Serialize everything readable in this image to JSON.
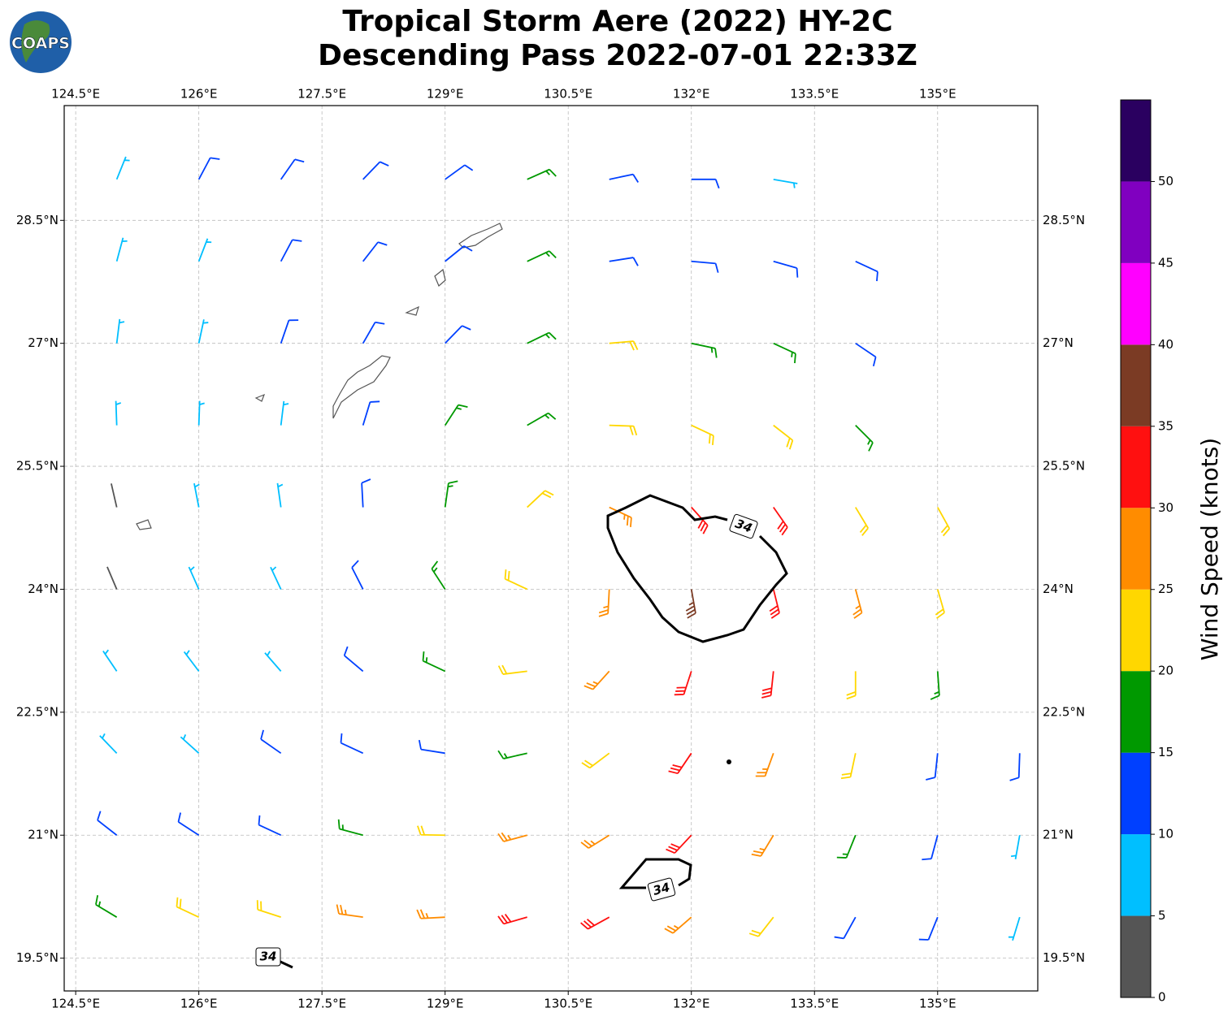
{
  "chart_data": {
    "type": "barbs",
    "logo": "COAPS",
    "title": "Tropical Storm Aere (2022) HY-2C",
    "subtitle": "Descending Pass 2022-07-01 22:33Z",
    "xlim": [
      124.36,
      136.22
    ],
    "ylim": [
      19.1,
      29.9
    ],
    "xticks": [
      {
        "value": 124.5,
        "label": "124.5°E"
      },
      {
        "value": 126,
        "label": "126°E"
      },
      {
        "value": 127.5,
        "label": "127.5°E"
      },
      {
        "value": 129,
        "label": "129°E"
      },
      {
        "value": 130.5,
        "label": "130.5°E"
      },
      {
        "value": 132,
        "label": "132°E"
      },
      {
        "value": 133.5,
        "label": "133.5°E"
      },
      {
        "value": 135,
        "label": "135°E"
      }
    ],
    "yticks": [
      {
        "value": 28.5,
        "label": "28.5°N"
      },
      {
        "value": 27,
        "label": "27°N"
      },
      {
        "value": 25.5,
        "label": "25.5°N"
      },
      {
        "value": 24,
        "label": "24°N"
      },
      {
        "value": 22.5,
        "label": "22.5°N"
      },
      {
        "value": 21,
        "label": "21°N"
      },
      {
        "value": 19.5,
        "label": "19.5°N"
      }
    ],
    "grid": true,
    "wind": {
      "lon": [
        125,
        126,
        127,
        128,
        129,
        130,
        131,
        132,
        133,
        134,
        135,
        136
      ],
      "lat": [
        29,
        28,
        27,
        26,
        25,
        24,
        23,
        22,
        21,
        20
      ],
      "speed": [
        [
          8,
          10,
          12,
          13,
          14,
          17,
          12,
          12,
          9,
          null,
          null,
          null
        ],
        [
          8,
          8,
          12,
          12,
          13,
          16,
          14,
          13,
          13,
          12,
          null,
          null
        ],
        [
          8,
          8,
          12,
          12,
          14,
          18,
          20,
          18,
          16,
          14,
          null,
          null
        ],
        [
          8,
          8,
          9,
          12,
          15,
          17,
          22,
          22,
          20,
          17,
          null,
          null
        ],
        [
          3,
          8,
          9,
          12,
          16,
          22,
          27,
          32,
          30,
          22,
          20,
          null
        ],
        [
          3,
          8,
          9,
          12,
          17,
          23,
          26,
          38,
          33,
          25,
          20,
          null
        ],
        [
          8,
          8,
          9,
          12,
          15,
          22,
          25,
          30,
          30,
          22,
          18,
          null
        ],
        [
          8,
          9,
          10,
          12,
          14,
          17,
          22,
          30,
          27,
          20,
          14,
          10
        ],
        [
          12,
          12,
          12,
          17,
          21,
          25,
          28,
          32,
          27,
          18,
          12,
          9
        ],
        [
          17,
          20,
          23,
          27,
          28,
          32,
          30,
          26,
          20,
          14,
          10,
          7
        ]
      ],
      "direction": [
        [
          22,
          28,
          35,
          44,
          54,
          66,
          78,
          90,
          100,
          null,
          null,
          null
        ],
        [
          15,
          21,
          28,
          38,
          51,
          65,
          81,
          95,
          106,
          115,
          null,
          null
        ],
        [
          7,
          12,
          19,
          30,
          44,
          64,
          85,
          102,
          115,
          124,
          null,
          null
        ],
        [
          358,
          2,
          7,
          17,
          33,
          60,
          92,
          115,
          128,
          135,
          null,
          null
        ],
        [
          347,
          349,
          352,
          357,
          8,
          47,
          115,
          138,
          145,
          149,
          151,
          null
        ],
        [
          337,
          336,
          335,
          333,
          327,
          295,
          183,
          170,
          166,
          165,
          164,
          null
        ],
        [
          326,
          323,
          319,
          310,
          295,
          263,
          222,
          198,
          186,
          180,
          176,
          null
        ],
        [
          316,
          312,
          305,
          295,
          279,
          257,
          233,
          214,
          200,
          192,
          186,
          182
        ],
        [
          308,
          303,
          295,
          285,
          271,
          255,
          238,
          223,
          211,
          202,
          195,
          190
        ],
        [
          301,
          295,
          288,
          278,
          267,
          254,
          241,
          229,
          218,
          209,
          202,
          197
        ]
      ]
    },
    "contour_labels": [
      34,
      34,
      34
    ],
    "colorbar": {
      "label": "Wind Speed (knots)",
      "ylim": [
        0,
        55
      ],
      "yticks": [
        0,
        5,
        10,
        15,
        20,
        25,
        30,
        35,
        40,
        45,
        50
      ],
      "bounds": [
        0,
        5,
        10,
        15,
        20,
        25,
        30,
        35,
        40,
        45,
        50,
        55
      ],
      "colors": [
        "#555555",
        "#00bfff",
        "#0040ff",
        "#009900",
        "#ffd700",
        "#ff8c00",
        "#ff1010",
        "#7b3b24",
        "#ff00ff",
        "#8000c0",
        "#2a0060"
      ]
    }
  }
}
